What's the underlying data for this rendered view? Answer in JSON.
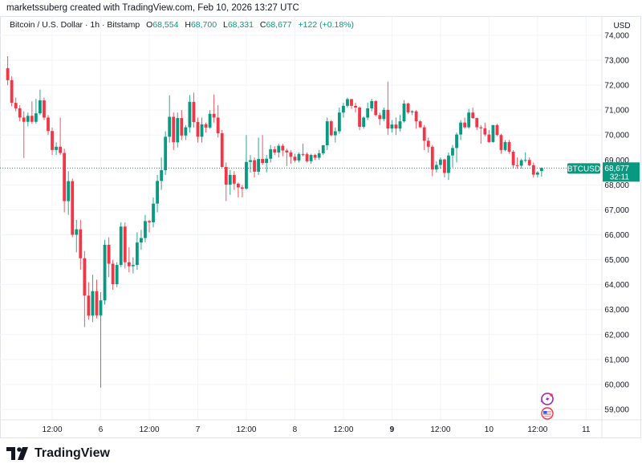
{
  "credit": "marketssuberg created with TradingView.com, Feb 10, 2026 13:27 UTC",
  "legend": {
    "symbol": "Bitcoin / U.S. Dollar · 1h · Bitstamp",
    "o_label": "O",
    "o": "68,554",
    "h_label": "H",
    "h": "68,700",
    "l_label": "L",
    "l": "68,331",
    "c_label": "C",
    "c": "68,677",
    "change": "+122 (+0.18%)"
  },
  "currency": "USD",
  "price_tag": {
    "ticker": "BTCUSD",
    "price": "68,677",
    "countdown": "32:11"
  },
  "footer": {
    "brand": "TradingView"
  },
  "colors": {
    "up": "#089981",
    "down": "#f23645",
    "grid": "#f0f3fa",
    "text": "#131722"
  },
  "icons": [
    "tradingview-logo-icon",
    "lightning-event-icon",
    "us-flag-event-icon"
  ],
  "chart_data": {
    "type": "candlestick",
    "interval": "1h",
    "ylim": [
      58500,
      74300
    ],
    "grid": true,
    "y_ticks": [
      {
        "value": 59000,
        "label": "59,000"
      },
      {
        "value": 60000,
        "label": "60,000"
      },
      {
        "value": 61000,
        "label": "61,000"
      },
      {
        "value": 62000,
        "label": "62,000"
      },
      {
        "value": 63000,
        "label": "63,000"
      },
      {
        "value": 64000,
        "label": "64,000"
      },
      {
        "value": 65000,
        "label": "65,000"
      },
      {
        "value": 66000,
        "label": "66,000"
      },
      {
        "value": 67000,
        "label": "67,000"
      },
      {
        "value": 68000,
        "label": "68,000"
      },
      {
        "value": 69000,
        "label": "69,000"
      },
      {
        "value": 70000,
        "label": "70,000"
      },
      {
        "value": 71000,
        "label": "71,000"
      },
      {
        "value": 72000,
        "label": "72,000"
      },
      {
        "value": 73000,
        "label": "73,000"
      },
      {
        "value": 74000,
        "label": "74,000"
      }
    ],
    "x_ticks": [
      {
        "candle": 11,
        "label": "12:00",
        "bold": false
      },
      {
        "candle": 23,
        "label": "6",
        "bold": false
      },
      {
        "candle": 35,
        "label": "12:00",
        "bold": false
      },
      {
        "candle": 47,
        "label": "7",
        "bold": false
      },
      {
        "candle": 59,
        "label": "12:00",
        "bold": false
      },
      {
        "candle": 71,
        "label": "8",
        "bold": false
      },
      {
        "candle": 83,
        "label": "12:00",
        "bold": false
      },
      {
        "candle": 95,
        "label": "9",
        "bold": true
      },
      {
        "candle": 107,
        "label": "12:00",
        "bold": false
      },
      {
        "candle": 119,
        "label": "10",
        "bold": false
      },
      {
        "candle": 131,
        "label": "12:00",
        "bold": false
      },
      {
        "candle": 143,
        "label": "11",
        "bold": false
      }
    ],
    "last_price": 68677,
    "candles_ohlc": [
      [
        72680,
        73160,
        72000,
        72200
      ],
      [
        72200,
        72350,
        71150,
        71290
      ],
      [
        71290,
        71500,
        70950,
        71070
      ],
      [
        71070,
        71200,
        70550,
        70700
      ],
      [
        70700,
        70950,
        69080,
        70530
      ],
      [
        70530,
        70900,
        70350,
        70770
      ],
      [
        70770,
        71350,
        70450,
        70530
      ],
      [
        70530,
        71450,
        70450,
        70870
      ],
      [
        70870,
        71820,
        70800,
        71390
      ],
      [
        71390,
        71500,
        70600,
        70700
      ],
      [
        70700,
        70800,
        70000,
        70160
      ],
      [
        70160,
        70300,
        69200,
        69400
      ],
      [
        69400,
        69700,
        69200,
        69530
      ],
      [
        69530,
        70700,
        69200,
        69280
      ],
      [
        69280,
        69450,
        66900,
        67350
      ],
      [
        67350,
        68550,
        66800,
        68150
      ],
      [
        68150,
        68250,
        65900,
        66000
      ],
      [
        66000,
        66600,
        65300,
        66220
      ],
      [
        66220,
        66600,
        64600,
        65060
      ],
      [
        65060,
        65350,
        62300,
        63560
      ],
      [
        63560,
        64100,
        62600,
        62760
      ],
      [
        62760,
        64400,
        62500,
        63740
      ],
      [
        63740,
        64200,
        62650,
        62770
      ],
      [
        62770,
        63700,
        59870,
        63370
      ],
      [
        63370,
        65800,
        63200,
        65600
      ],
      [
        65600,
        65900,
        64300,
        64840
      ],
      [
        64840,
        65000,
        63800,
        64020
      ],
      [
        64020,
        64900,
        63900,
        64790
      ],
      [
        64790,
        66500,
        64700,
        66330
      ],
      [
        66330,
        66500,
        64650,
        64900
      ],
      [
        64900,
        65500,
        64500,
        64740
      ],
      [
        64740,
        65100,
        64450,
        64790
      ],
      [
        64790,
        66100,
        64600,
        65690
      ],
      [
        65690,
        66200,
        65400,
        65870
      ],
      [
        65870,
        66800,
        65700,
        66550
      ],
      [
        66550,
        66600,
        66100,
        66500
      ],
      [
        66500,
        67500,
        66300,
        67250
      ],
      [
        67250,
        68400,
        66900,
        68160
      ],
      [
        68160,
        69100,
        67800,
        68590
      ],
      [
        68590,
        70150,
        68400,
        69930
      ],
      [
        69930,
        71590,
        69700,
        70730
      ],
      [
        70730,
        70900,
        69400,
        69710
      ],
      [
        69710,
        70900,
        69500,
        70680
      ],
      [
        70680,
        71000,
        69800,
        69980
      ],
      [
        69980,
        70400,
        69800,
        70310
      ],
      [
        70310,
        71600,
        70100,
        71330
      ],
      [
        71330,
        71700,
        70300,
        70520
      ],
      [
        70520,
        70700,
        69700,
        69930
      ],
      [
        69930,
        70700,
        69700,
        70430
      ],
      [
        70430,
        70500,
        70100,
        70300
      ],
      [
        70300,
        71000,
        70250,
        70850
      ],
      [
        70850,
        71620,
        70500,
        70700
      ],
      [
        70700,
        71200,
        69900,
        70070
      ],
      [
        70070,
        70200,
        68700,
        68720
      ],
      [
        68720,
        68900,
        67350,
        68010
      ],
      [
        68010,
        68600,
        67600,
        68400
      ],
      [
        68400,
        68550,
        67800,
        68050
      ],
      [
        68050,
        68100,
        67500,
        67900
      ],
      [
        67900,
        68000,
        67500,
        67850
      ],
      [
        67850,
        70000,
        67800,
        68920
      ],
      [
        68920,
        69200,
        68500,
        68990
      ],
      [
        68990,
        69100,
        68300,
        68530
      ],
      [
        68530,
        69900,
        68400,
        69040
      ],
      [
        69040,
        70000,
        68800,
        68880
      ],
      [
        68880,
        69200,
        68500,
        69050
      ],
      [
        69050,
        69600,
        68900,
        69430
      ],
      [
        69430,
        69550,
        69200,
        69300
      ],
      [
        69300,
        69650,
        69100,
        69570
      ],
      [
        69570,
        69650,
        69150,
        69380
      ],
      [
        69380,
        69450,
        68750,
        69300
      ],
      [
        69300,
        69400,
        68850,
        69130
      ],
      [
        69130,
        69250,
        68900,
        68980
      ],
      [
        68980,
        69300,
        68900,
        69240
      ],
      [
        69240,
        69650,
        69150,
        69230
      ],
      [
        69230,
        69300,
        68900,
        68950
      ],
      [
        68950,
        69250,
        68850,
        69200
      ],
      [
        69200,
        69250,
        69000,
        69090
      ],
      [
        69090,
        69400,
        69000,
        69270
      ],
      [
        69270,
        69600,
        69200,
        69590
      ],
      [
        69590,
        70700,
        69400,
        70550
      ],
      [
        70550,
        70600,
        69950,
        69990
      ],
      [
        69990,
        70300,
        69700,
        70150
      ],
      [
        70150,
        71100,
        70050,
        70900
      ],
      [
        70900,
        71300,
        70700,
        71170
      ],
      [
        71170,
        71500,
        71100,
        71440
      ],
      [
        71440,
        71450,
        71050,
        71170
      ],
      [
        71170,
        71300,
        70900,
        71100
      ],
      [
        71100,
        71150,
        70200,
        70330
      ],
      [
        70330,
        70750,
        70250,
        70700
      ],
      [
        70700,
        71300,
        70600,
        71070
      ],
      [
        71070,
        71450,
        70950,
        71360
      ],
      [
        71360,
        71400,
        70750,
        70800
      ],
      [
        70800,
        70900,
        70400,
        70640
      ],
      [
        70640,
        71100,
        70550,
        71010
      ],
      [
        71010,
        72140,
        70000,
        70260
      ],
      [
        70260,
        70600,
        70100,
        70420
      ],
      [
        70420,
        70700,
        70000,
        70260
      ],
      [
        70260,
        70800,
        70150,
        70550
      ],
      [
        70550,
        71400,
        70500,
        71260
      ],
      [
        71260,
        71300,
        70850,
        70910
      ],
      [
        70910,
        71000,
        70800,
        70950
      ],
      [
        70950,
        71000,
        70250,
        70550
      ],
      [
        70550,
        70600,
        70300,
        70310
      ],
      [
        70310,
        70400,
        69400,
        69770
      ],
      [
        69770,
        69900,
        69300,
        69530
      ],
      [
        69530,
        69600,
        68350,
        68620
      ],
      [
        68620,
        68950,
        68500,
        68800
      ],
      [
        68800,
        69100,
        68650,
        69020
      ],
      [
        69020,
        69050,
        68300,
        68480
      ],
      [
        68480,
        69300,
        68200,
        69180
      ],
      [
        69180,
        69600,
        68700,
        69480
      ],
      [
        69480,
        70100,
        68900,
        70020
      ],
      [
        70020,
        70600,
        69800,
        70500
      ],
      [
        70500,
        70700,
        70250,
        70310
      ],
      [
        70310,
        71050,
        70250,
        70900
      ],
      [
        70900,
        71100,
        70650,
        70680
      ],
      [
        70680,
        70700,
        70200,
        70310
      ],
      [
        70310,
        70400,
        69650,
        70270
      ],
      [
        70270,
        70500,
        69950,
        70020
      ],
      [
        70020,
        70200,
        69700,
        69720
      ],
      [
        69720,
        70400,
        69700,
        70400
      ],
      [
        70400,
        70450,
        69950,
        70000
      ],
      [
        70000,
        70050,
        69250,
        69400
      ],
      [
        69400,
        69800,
        69350,
        69720
      ],
      [
        69720,
        69800,
        69250,
        69330
      ],
      [
        69330,
        69400,
        68650,
        68790
      ],
      [
        68790,
        69100,
        68650,
        68770
      ],
      [
        68770,
        69050,
        68650,
        68990
      ],
      [
        68990,
        69300,
        68900,
        69000
      ],
      [
        69000,
        69100,
        68750,
        68790
      ],
      [
        68790,
        68900,
        68300,
        68410
      ],
      [
        68410,
        68550,
        68300,
        68500
      ],
      [
        68554,
        68700,
        68331,
        68677
      ]
    ]
  }
}
